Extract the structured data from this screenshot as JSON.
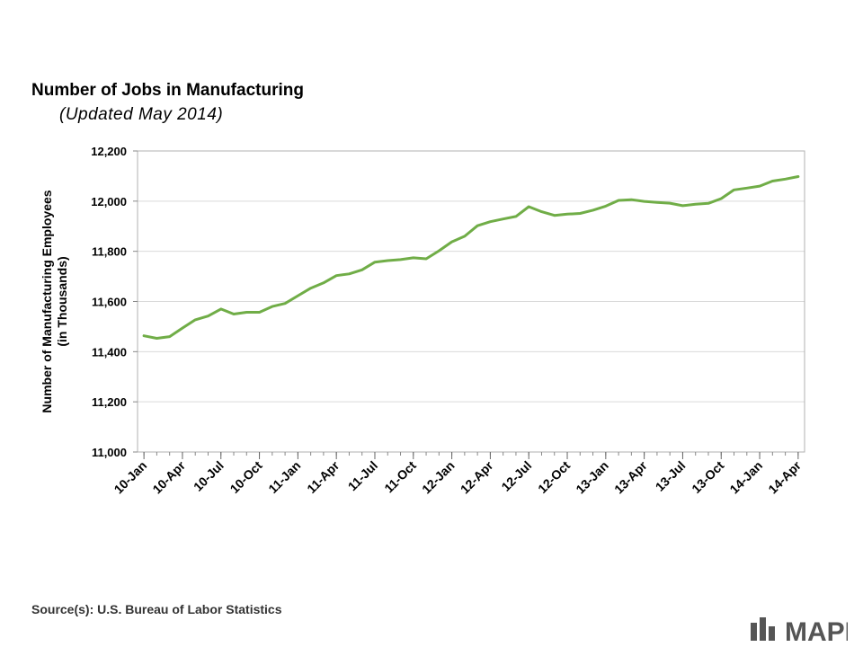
{
  "title": "Number of Jobs in Manufacturing",
  "subtitle": "(Updated May 2014)",
  "source": "Source(s): U.S. Bureau of Labor Statistics",
  "logo_text": "MAPI",
  "colors": {
    "line": "#70AD47",
    "logo": "#555555",
    "grid": "#d9d9d9"
  },
  "chart_data": {
    "type": "line",
    "ylabel": "Number  of Manufacturing  Employees (in Thousands)",
    "ylabel_lines": [
      "Number  of Manufacturing  Employees",
      "(in Thousands)"
    ],
    "ylim": [
      11000,
      12200
    ],
    "yticks": [
      11000,
      11200,
      11400,
      11600,
      11800,
      12000,
      12200
    ],
    "ytick_labels": [
      "11,000",
      "11,200",
      "11,400",
      "11,600",
      "11,800",
      "12,000",
      "12,200"
    ],
    "grid": true,
    "legend": "none",
    "x_tick_labels": [
      "10-Jan",
      "10-Apr",
      "10-Jul",
      "10-Oct",
      "11-Jan",
      "11-Apr",
      "11-Jul",
      "11-Oct",
      "12-Jan",
      "12-Apr",
      "12-Jul",
      "12-Oct",
      "13-Jan",
      "13-Apr",
      "13-Jul",
      "13-Oct",
      "14-Jan",
      "14-Apr"
    ],
    "x": [
      "10-Jan",
      "10-Feb",
      "10-Mar",
      "10-Apr",
      "10-May",
      "10-Jun",
      "10-Jul",
      "10-Aug",
      "10-Sep",
      "10-Oct",
      "10-Nov",
      "10-Dec",
      "11-Jan",
      "11-Feb",
      "11-Mar",
      "11-Apr",
      "11-May",
      "11-Jun",
      "11-Jul",
      "11-Aug",
      "11-Sep",
      "11-Oct",
      "11-Nov",
      "11-Dec",
      "12-Jan",
      "12-Feb",
      "12-Mar",
      "12-Apr",
      "12-May",
      "12-Jun",
      "12-Jul",
      "12-Aug",
      "12-Sep",
      "12-Oct",
      "12-Nov",
      "12-Dec",
      "13-Jan",
      "13-Feb",
      "13-Mar",
      "13-Apr",
      "13-May",
      "13-Jun",
      "13-Jul",
      "13-Aug",
      "13-Sep",
      "13-Oct",
      "13-Nov",
      "13-Dec",
      "14-Jan",
      "14-Feb",
      "14-Mar",
      "14-Apr"
    ],
    "series": [
      {
        "values": [
          11463,
          11453,
          11460,
          11494,
          11527,
          11542,
          11570,
          11550,
          11557,
          11557,
          11580,
          11592,
          11623,
          11653,
          11674,
          11703,
          11710,
          11726,
          11757,
          11763,
          11767,
          11774,
          11770,
          11802,
          11838,
          11860,
          11902,
          11918,
          11929,
          11939,
          11978,
          11958,
          11943,
          11948,
          11951,
          11964,
          11980,
          12003,
          12006,
          11999,
          11995,
          11992,
          11982,
          11988,
          11991,
          12010,
          12045,
          12052,
          12060,
          12080,
          12088,
          12098
        ]
      }
    ]
  }
}
